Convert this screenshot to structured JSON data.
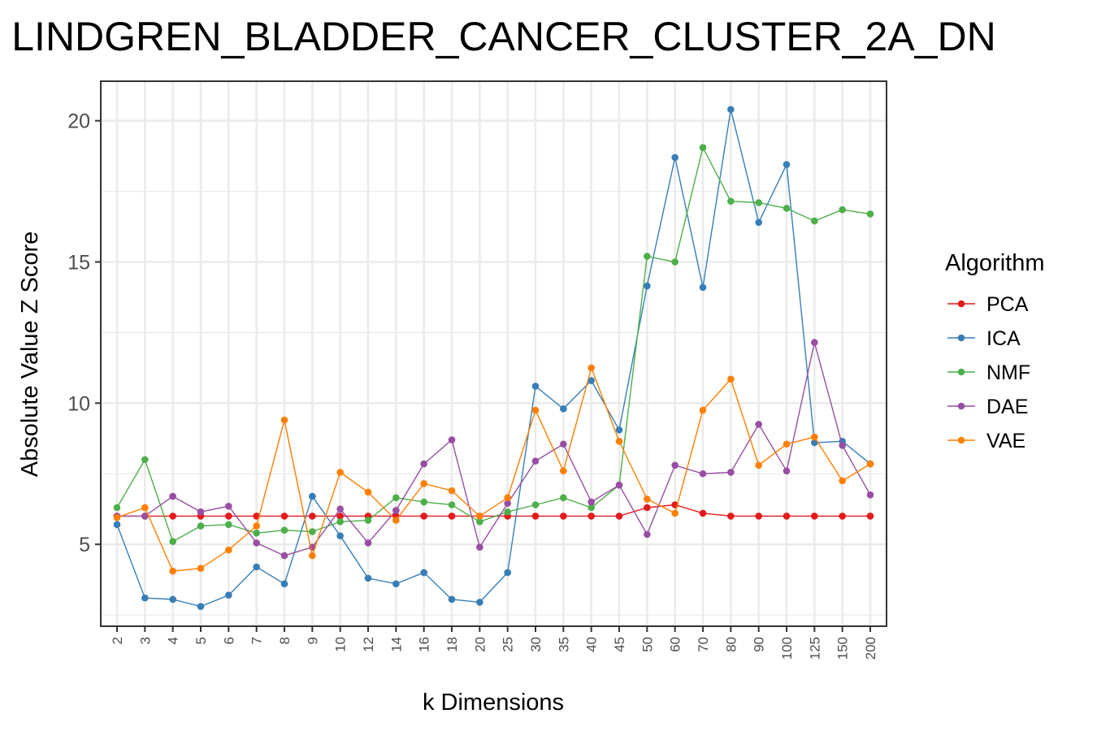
{
  "chart_data": {
    "type": "line",
    "title": "LINDGREN_BLADDER_CANCER_CLUSTER_2A_DN",
    "xlabel": "k Dimensions",
    "ylabel": "Absolute Value Z Score",
    "categories": [
      "2",
      "3",
      "4",
      "5",
      "6",
      "7",
      "8",
      "9",
      "10",
      "12",
      "14",
      "16",
      "18",
      "20",
      "25",
      "30",
      "35",
      "40",
      "45",
      "50",
      "60",
      "70",
      "80",
      "90",
      "100",
      "125",
      "150",
      "200"
    ],
    "ylim": [
      2.1,
      21.4
    ],
    "yticks": [
      5,
      10,
      15,
      20
    ],
    "grid": true,
    "legend": {
      "title": "Algorithm",
      "placement": "right"
    },
    "series": [
      {
        "name": "PCA",
        "color": "#e41a1c",
        "values": [
          6.0,
          6.0,
          6.0,
          6.0,
          6.0,
          6.0,
          6.0,
          6.0,
          6.0,
          6.0,
          6.0,
          6.0,
          6.0,
          6.0,
          6.0,
          6.0,
          6.0,
          6.0,
          6.0,
          6.3,
          6.4,
          6.1,
          6.0,
          6.0,
          6.0,
          6.0,
          6.0,
          6.0
        ]
      },
      {
        "name": "ICA",
        "color": "#377eb8",
        "values": [
          5.7,
          3.1,
          3.05,
          2.8,
          3.2,
          4.2,
          3.6,
          6.7,
          5.3,
          3.8,
          3.6,
          4.0,
          3.05,
          2.95,
          4.0,
          10.6,
          9.8,
          10.8,
          9.05,
          14.15,
          18.7,
          14.1,
          20.4,
          16.4,
          18.45,
          8.6,
          8.65,
          7.85
        ]
      },
      {
        "name": "NMF",
        "color": "#4daf4a",
        "values": [
          6.3,
          8.0,
          5.1,
          5.65,
          5.7,
          5.4,
          5.5,
          5.45,
          5.8,
          5.85,
          6.65,
          6.5,
          6.4,
          5.8,
          6.15,
          6.4,
          6.65,
          6.3,
          7.1,
          15.2,
          15.0,
          19.05,
          17.15,
          17.1,
          16.9,
          16.45,
          16.85,
          16.7
        ]
      },
      {
        "name": "DAE",
        "color": "#984ea3",
        "values": [
          6.0,
          6.0,
          6.7,
          6.15,
          6.35,
          5.05,
          4.6,
          4.9,
          6.25,
          5.05,
          6.2,
          7.85,
          8.7,
          4.9,
          6.45,
          7.95,
          8.55,
          6.5,
          7.1,
          5.35,
          7.8,
          7.5,
          7.55,
          9.25,
          7.6,
          12.15,
          8.5,
          6.75
        ]
      },
      {
        "name": "VAE",
        "color": "#ff7f00",
        "values": [
          5.95,
          6.3,
          4.05,
          4.15,
          4.8,
          5.65,
          9.4,
          4.6,
          7.55,
          6.85,
          5.85,
          7.15,
          6.9,
          6.0,
          6.65,
          9.75,
          7.6,
          11.25,
          8.65,
          6.6,
          6.1,
          9.75,
          10.85,
          7.8,
          8.55,
          8.8,
          7.25,
          7.85
        ]
      }
    ]
  }
}
